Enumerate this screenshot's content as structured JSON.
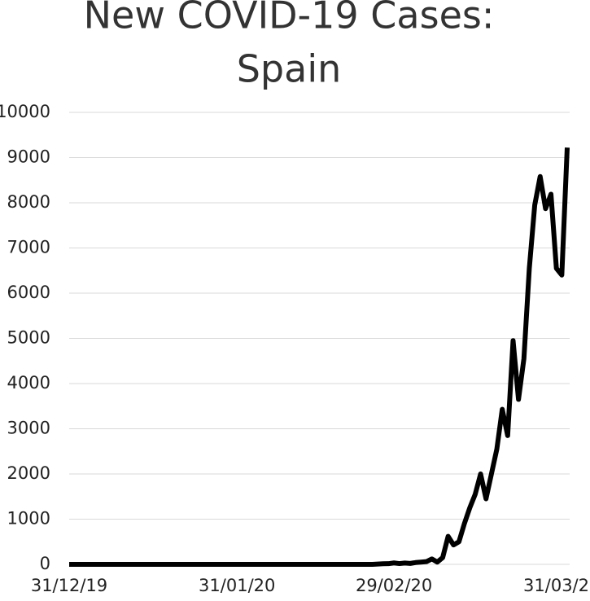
{
  "chart_data": {
    "type": "line",
    "title": [
      "New COVID-19 Cases:",
      "Spain"
    ],
    "categories": [
      "31/12/19",
      null,
      null,
      null,
      null,
      null,
      null,
      null,
      null,
      null,
      null,
      null,
      null,
      null,
      null,
      null,
      null,
      null,
      null,
      null,
      null,
      null,
      null,
      null,
      null,
      null,
      null,
      null,
      null,
      null,
      null,
      "31/01/20",
      null,
      null,
      null,
      null,
      null,
      null,
      null,
      null,
      null,
      null,
      null,
      null,
      null,
      null,
      null,
      null,
      null,
      null,
      null,
      null,
      null,
      null,
      null,
      null,
      null,
      null,
      null,
      null,
      "29/02/20",
      null,
      null,
      null,
      null,
      null,
      null,
      null,
      null,
      null,
      null,
      null,
      null,
      null,
      null,
      null,
      null,
      null,
      null,
      null,
      null,
      null,
      null,
      null,
      null,
      null,
      null,
      null,
      null,
      null,
      null,
      "31/03/2",
      null
    ],
    "series": [
      {
        "name": "Spain",
        "color": "#000000",
        "values": [
          0,
          0,
          0,
          0,
          0,
          0,
          0,
          0,
          0,
          0,
          0,
          0,
          0,
          0,
          0,
          0,
          0,
          0,
          0,
          0,
          0,
          0,
          0,
          0,
          0,
          0,
          0,
          0,
          0,
          0,
          0,
          0,
          0,
          0,
          0,
          0,
          0,
          0,
          0,
          0,
          0,
          0,
          0,
          0,
          0,
          0,
          0,
          0,
          0,
          0,
          0,
          0,
          0,
          0,
          0,
          0,
          0,
          6,
          13,
          15,
          32,
          17,
          30,
          20,
          40,
          50,
          60,
          120,
          50,
          150,
          620,
          430,
          500,
          900,
          1250,
          1550,
          2000,
          1450,
          2000,
          2550,
          3430,
          2850,
          4950,
          3650,
          4550,
          6550,
          7950,
          8580,
          7870,
          8190,
          6550,
          6400,
          9220
        ]
      }
    ],
    "ylim": [
      0,
      10000
    ],
    "yticks": [
      0,
      1000,
      2000,
      3000,
      4000,
      5000,
      6000,
      7000,
      8000,
      9000,
      10000
    ],
    "grid": true
  }
}
